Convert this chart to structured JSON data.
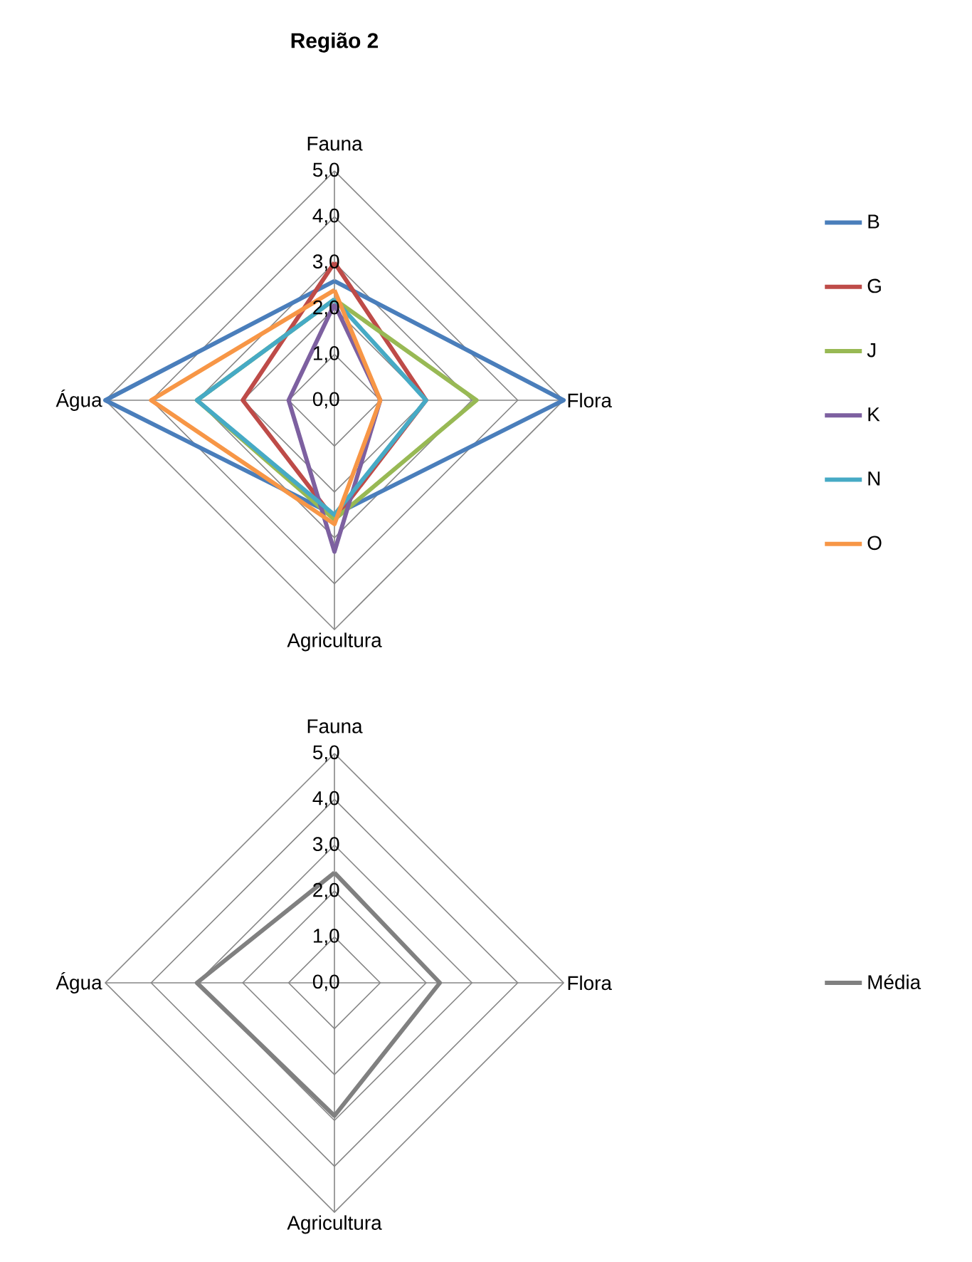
{
  "chart_data": [
    {
      "type": "radar",
      "title": "Região 2",
      "categories": [
        "Fauna",
        "Flora",
        "Agricultura",
        "Água"
      ],
      "series": [
        {
          "name": "B",
          "color": "#4a7ebb",
          "values": [
            2.6,
            5.0,
            2.5,
            5.0
          ]
        },
        {
          "name": "G",
          "color": "#be4b48",
          "values": [
            3.0,
            2.0,
            2.6,
            2.0
          ]
        },
        {
          "name": "J",
          "color": "#98b954",
          "values": [
            2.2,
            3.1,
            2.6,
            3.0
          ]
        },
        {
          "name": "K",
          "color": "#7d60a0",
          "values": [
            2.1,
            1.0,
            3.3,
            1.0
          ]
        },
        {
          "name": "N",
          "color": "#46aac5",
          "values": [
            2.2,
            2.0,
            2.5,
            3.0
          ]
        },
        {
          "name": "O",
          "color": "#f79646",
          "values": [
            2.4,
            1.0,
            2.7,
            4.0
          ]
        }
      ],
      "ylim": [
        0,
        5
      ],
      "yticks": [
        {
          "value": 0,
          "label": "0,0"
        },
        {
          "value": 1,
          "label": "1,0"
        },
        {
          "value": 2,
          "label": "2,0"
        },
        {
          "value": 3,
          "label": "3,0"
        },
        {
          "value": 4,
          "label": "4,0"
        },
        {
          "value": 5,
          "label": "5,0"
        }
      ],
      "grid": true,
      "legend": "right"
    },
    {
      "type": "radar",
      "categories": [
        "Fauna",
        "Flora",
        "Agricultura",
        "Água"
      ],
      "series": [
        {
          "name": "Média",
          "color": "#808080",
          "values": [
            2.4,
            2.3,
            2.9,
            3.0
          ]
        }
      ],
      "ylim": [
        0,
        5
      ],
      "yticks": [
        {
          "value": 0,
          "label": "0,0"
        },
        {
          "value": 1,
          "label": "1,0"
        },
        {
          "value": 2,
          "label": "2,0"
        },
        {
          "value": 3,
          "label": "3,0"
        },
        {
          "value": 4,
          "label": "4,0"
        },
        {
          "value": 5,
          "label": "5,0"
        }
      ],
      "grid": true,
      "legend": "right"
    }
  ]
}
